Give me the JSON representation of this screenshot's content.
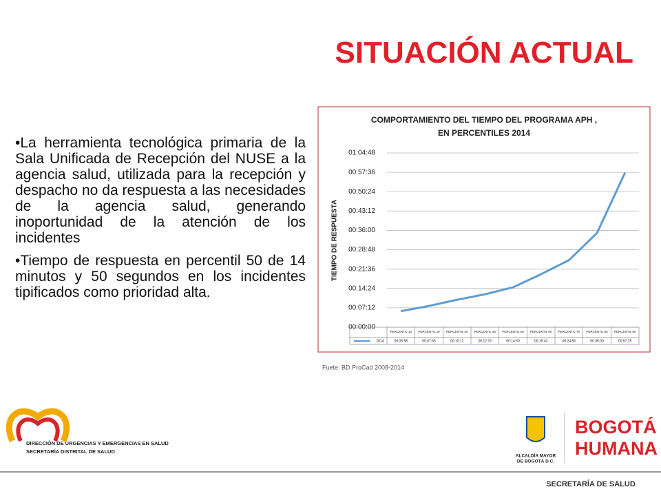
{
  "heading": "SITUACIÓN ACTUAL",
  "bullets": [
    "•La herramienta tecnológica primaria de la Sala Unificada de Recepción del NUSE a la agencia salud, utilizada para la recepción y despacho no da respuesta a las necesidades de la agencia salud, generando inoportunidad de la atención de los incidentes",
    "•Tiempo de respuesta en percentil 50 de 14 minutos y 50 segundos en los incidentes tipificados como prioridad alta."
  ],
  "source": "Fuete: BD ProCad 2008-2014",
  "logos": {
    "left": [
      "DIRECCIÓN DE URGENCIAS Y EMERGENCIAS EN SALUD",
      "SECRETARÍA DISTRITAL DE SALUD"
    ],
    "alcaldia": [
      "ALCALDÍA MAYOR",
      "DE BOGOTÁ D.C."
    ],
    "bogota": "BOGOTÁ",
    "humana": "HUMANA",
    "footer": "SECRETARÍA DE SALUD"
  },
  "chart_data": {
    "type": "line",
    "title": "COMPORTAMIENTO DEL TIEMPO DEL PROGRAMA APH ,",
    "subtitle": "EN PERCENTILES 2014",
    "ylabel": "TIEMPO DE RESPUESTA",
    "categories": [
      "PERCENTIL 10",
      "PERCENTIL 20",
      "PERCENTIL 30",
      "PERCENTIL 40",
      "PERCENTIL 50",
      "PERCENTIL 60",
      "PERCENTIL 70",
      "PERCENTIL 80",
      "PERCENTIL 90"
    ],
    "series": [
      {
        "name": "2014",
        "color": "#5b9bd5",
        "values": [
          358,
          475,
          612,
          735,
          890,
          1182,
          1496,
          2100,
          3445
        ],
        "value_labels": [
          "00:05:58",
          "00:07:55",
          "00:10:12",
          "00:12:15",
          "00:14:50",
          "00:19:42",
          "00:24:56",
          "00:35:00",
          "00:57:25"
        ]
      }
    ],
    "ylim": [
      0,
      3888
    ],
    "yticks": [
      {
        "value": 0,
        "label": "00:00:00"
      },
      {
        "value": 432,
        "label": "00:07:12"
      },
      {
        "value": 864,
        "label": "00:14:24"
      },
      {
        "value": 1296,
        "label": "00:21:36"
      },
      {
        "value": 1728,
        "label": "00:28:48"
      },
      {
        "value": 2160,
        "label": "00:36:00"
      },
      {
        "value": 2592,
        "label": "00:43:12"
      },
      {
        "value": 3024,
        "label": "00:50:24"
      },
      {
        "value": 3456,
        "label": "00:57:36"
      },
      {
        "value": 3888,
        "label": "01:04:48"
      }
    ],
    "grid": true
  }
}
